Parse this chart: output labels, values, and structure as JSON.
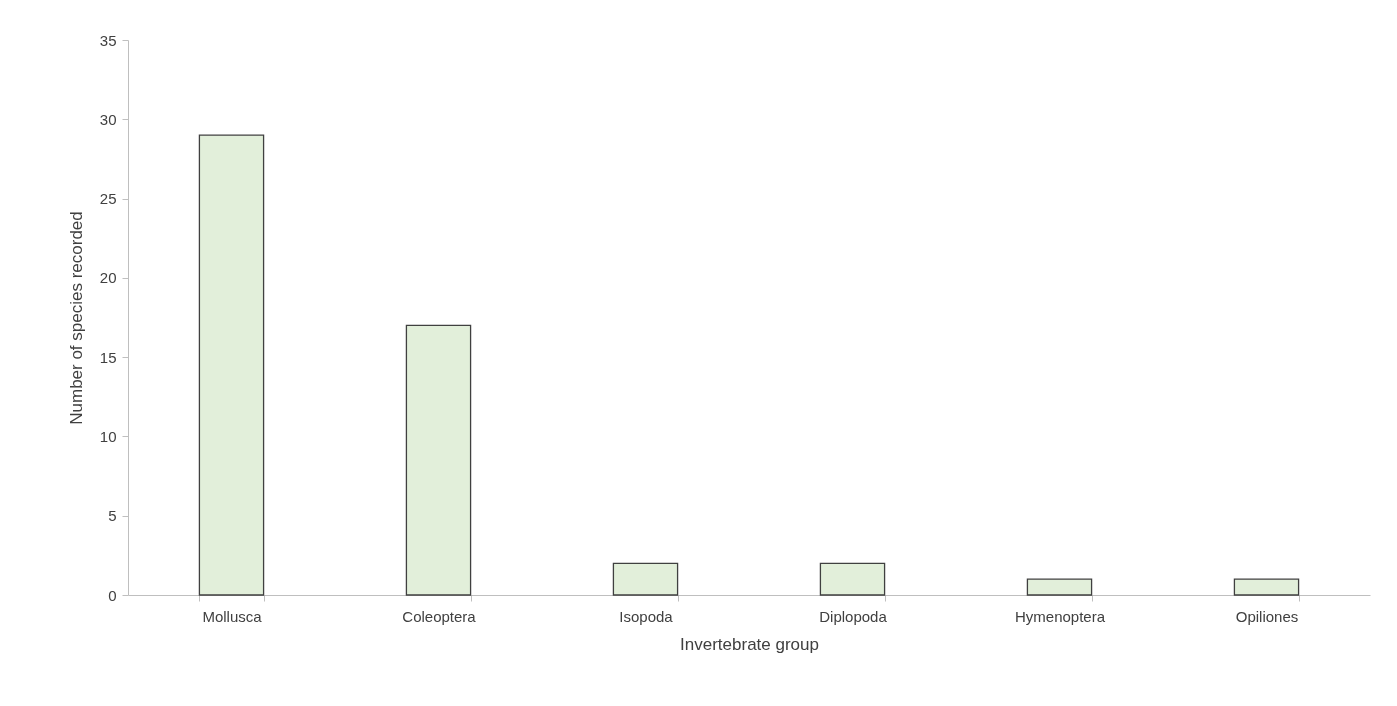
{
  "chart_data": {
    "type": "bar",
    "xlabel": "Invertebrate group",
    "ylabel": "Number of species recorded",
    "categories": [
      "Mollusca",
      "Coleoptera",
      "Isopoda",
      "Diplopoda",
      "Hymenoptera",
      "Opiliones"
    ],
    "values": [
      29,
      17,
      2,
      2,
      1,
      1
    ],
    "color": "#e2efda",
    "ylim": [
      0,
      35
    ],
    "yticks": [
      0,
      5,
      10,
      15,
      20,
      25,
      30,
      35
    ]
  }
}
